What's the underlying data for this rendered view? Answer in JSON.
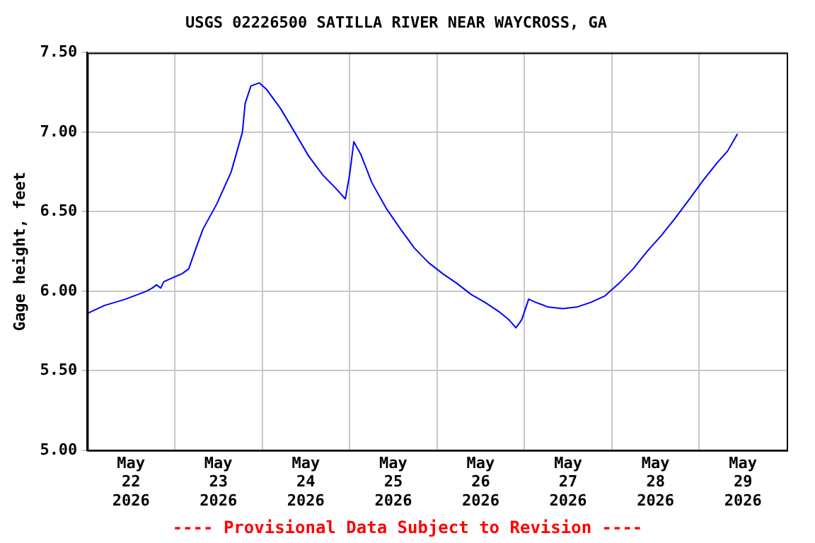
{
  "chart_data": {
    "type": "line",
    "title": "USGS 02226500 SATILLA RIVER NEAR WAYCROSS, GA",
    "ylabel": "Gage height, feet",
    "annotations": [
      "---- Provisional Data Subject to Revision ----"
    ],
    "x": [
      "2026-05-22T00:00",
      "2026-05-22T04:40",
      "2026-05-22T10:30",
      "2026-05-22T16:15",
      "2026-05-22T17:50",
      "2026-05-22T19:00",
      "2026-05-22T20:10",
      "2026-05-22T21:00",
      "2026-05-23T02:00",
      "2026-05-23T03:50",
      "2026-05-23T05:50",
      "2026-05-23T07:45",
      "2026-05-23T11:35",
      "2026-05-23T15:30",
      "2026-05-23T18:35",
      "2026-05-23T19:20",
      "2026-05-23T20:55",
      "2026-05-23T23:15",
      "2026-05-24T01:10",
      "2026-05-24T05:00",
      "2026-05-24T08:55",
      "2026-05-24T12:45",
      "2026-05-24T16:40",
      "2026-05-24T20:30",
      "2026-05-24T22:50",
      "2026-05-25T00:00",
      "2026-05-25T01:10",
      "2026-05-25T03:05",
      "2026-05-25T06:10",
      "2026-05-25T10:05",
      "2026-05-25T14:00",
      "2026-05-25T17:50",
      "2026-05-25T21:40",
      "2026-05-26T01:35",
      "2026-05-26T05:25",
      "2026-05-26T09:20",
      "2026-05-26T13:10",
      "2026-05-26T17:05",
      "2026-05-26T19:45",
      "2026-05-26T21:40",
      "2026-05-26T23:15",
      "2026-05-27T01:10",
      "2026-05-27T03:05",
      "2026-05-27T06:35",
      "2026-05-27T10:30",
      "2026-05-27T14:20",
      "2026-05-27T18:15",
      "2026-05-27T22:05",
      "2026-05-28T02:00",
      "2026-05-28T05:50",
      "2026-05-28T09:40",
      "2026-05-28T13:35",
      "2026-05-28T17:25",
      "2026-05-28T21:20",
      "2026-05-29T01:10",
      "2026-05-29T05:00",
      "2026-05-29T07:45",
      "2026-05-29T10:30"
    ],
    "series": [
      {
        "color": "#0000ff",
        "values": [
          5.86,
          5.91,
          5.95,
          6.0,
          6.02,
          6.04,
          6.02,
          6.06,
          6.11,
          6.14,
          6.27,
          6.39,
          6.55,
          6.75,
          7.0,
          7.18,
          7.29,
          7.31,
          7.27,
          7.15,
          7.0,
          6.85,
          6.73,
          6.64,
          6.58,
          6.73,
          6.94,
          6.86,
          6.68,
          6.52,
          6.39,
          6.27,
          6.18,
          6.11,
          6.05,
          5.98,
          5.93,
          5.87,
          5.82,
          5.77,
          5.82,
          5.95,
          5.93,
          5.9,
          5.89,
          5.9,
          5.93,
          5.97,
          6.05,
          6.14,
          6.25,
          6.35,
          6.46,
          6.58,
          6.7,
          6.81,
          6.88,
          6.99
        ]
      }
    ],
    "xlim": [
      "2026-05-22T00:00",
      "2026-05-30T00:00"
    ],
    "xticks": [
      {
        "value": "2026-05-22T12:00",
        "label": "May 22 2026"
      },
      {
        "value": "2026-05-23T00:00",
        "label": null
      },
      {
        "value": "2026-05-23T12:00",
        "label": "May 23 2026"
      },
      {
        "value": "2026-05-24T00:00",
        "label": null
      },
      {
        "value": "2026-05-24T12:00",
        "label": "May 24 2026"
      },
      {
        "value": "2026-05-25T00:00",
        "label": null
      },
      {
        "value": "2026-05-25T12:00",
        "label": "May 25 2026"
      },
      {
        "value": "2026-05-26T00:00",
        "label": null
      },
      {
        "value": "2026-05-26T12:00",
        "label": "May 26 2026"
      },
      {
        "value": "2026-05-27T00:00",
        "label": null
      },
      {
        "value": "2026-05-27T12:00",
        "label": "May 27 2026"
      },
      {
        "value": "2026-05-28T00:00",
        "label": null
      },
      {
        "value": "2026-05-28T12:00",
        "label": "May 28 2026"
      },
      {
        "value": "2026-05-29T00:00",
        "label": null
      },
      {
        "value": "2026-05-29T12:00",
        "label": "May 29 2026"
      }
    ],
    "ylim": [
      5.0,
      7.5
    ],
    "yticks": [
      {
        "value": 5.0,
        "label": "5.00"
      },
      {
        "value": 5.5,
        "label": "5.50"
      },
      {
        "value": 6.0,
        "label": "6.00"
      },
      {
        "value": 6.5,
        "label": "6.50"
      },
      {
        "value": 7.0,
        "label": "7.00"
      },
      {
        "value": 7.5,
        "label": "7.50"
      }
    ],
    "grid": true,
    "legend": false,
    "marker": "none",
    "line_style": "solid"
  }
}
